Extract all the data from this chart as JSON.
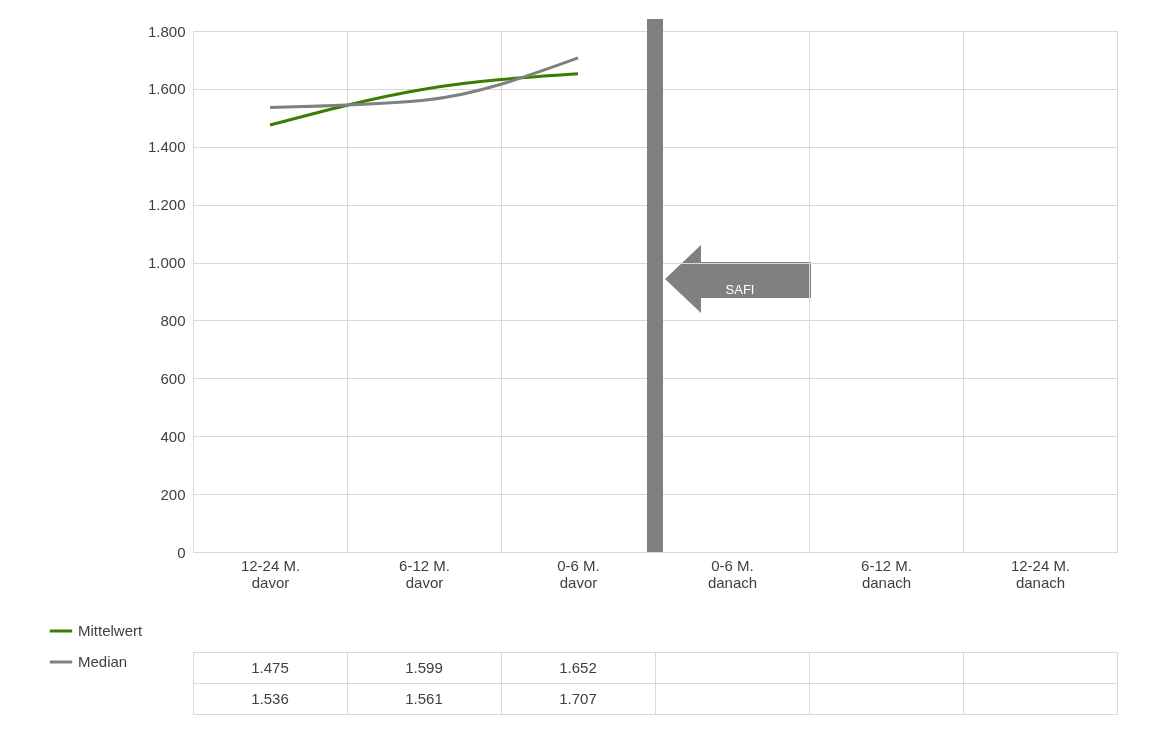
{
  "chart_data": {
    "type": "line",
    "categories": [
      "12-24 M. davor",
      "6-12 M. davor",
      "0-6 M. davor",
      "0-6 M. danach",
      "6-12 M. danach",
      "12-24 M. danach"
    ],
    "series": [
      {
        "name": "Mittelwert",
        "color": "#3a7d00",
        "values": [
          1475,
          1599,
          1652,
          null,
          null,
          null
        ],
        "value_labels": [
          "1.475",
          "1.599",
          "1.652",
          null,
          null,
          null
        ]
      },
      {
        "name": "Median",
        "color": "#808080",
        "values": [
          1536,
          1561,
          1707,
          null,
          null,
          null
        ],
        "value_labels": [
          "1.536",
          "1.561",
          "1.707",
          null,
          null,
          null
        ]
      }
    ],
    "ylim": [
      0,
      1800
    ],
    "yticks": [
      0,
      200,
      400,
      600,
      800,
      {
        "value": 1000,
        "label": "1.000"
      },
      {
        "value": 1200,
        "label": "1.200"
      },
      {
        "value": 1400,
        "label": "1.400"
      },
      {
        "value": 1600,
        "label": "1.600"
      },
      {
        "value": 1800,
        "label": "1.800"
      }
    ],
    "grid": true,
    "legend": "bottom left",
    "annotations": [
      "SAFI"
    ],
    "ref_lines": [
      {
        "axis": "x",
        "value": "0-6 M. danach",
        "color": "#808080"
      }
    ]
  }
}
